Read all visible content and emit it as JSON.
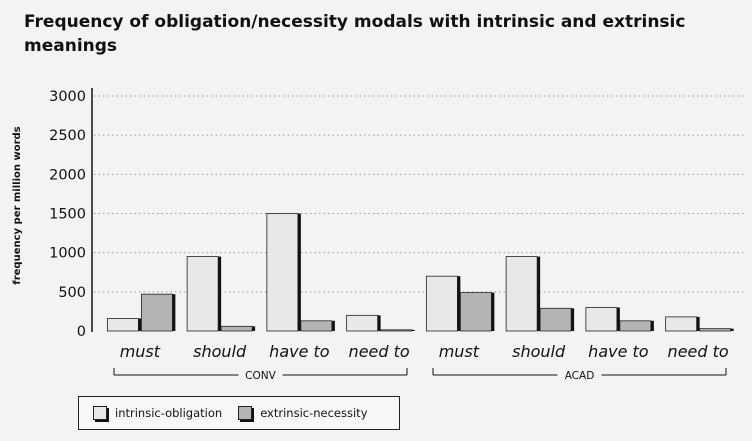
{
  "title": "Frequency of obligation/necessity modals with intrinsic and extrinsic meanings",
  "chart_data": {
    "type": "bar",
    "title": "Frequency of obligation/necessity modals with intrinsic and extrinsic meanings",
    "ylabel": "frequency per million words",
    "xlabel": "",
    "ylim": [
      0,
      3000
    ],
    "yticks": [
      0,
      500,
      1000,
      1500,
      2000,
      2500,
      3000
    ],
    "grid": true,
    "legend_position": "bottom-left",
    "categories": [
      "must",
      "should",
      "have to",
      "need to",
      "must",
      "should",
      "have to",
      "need to"
    ],
    "groups": [
      {
        "label": "CONV",
        "categories": [
          "must",
          "should",
          "have to",
          "need to"
        ]
      },
      {
        "label": "ACAD",
        "categories": [
          "must",
          "should",
          "have to",
          "need to"
        ]
      }
    ],
    "series": [
      {
        "name": "intrinsic-obligation",
        "color": "#e8e8e6",
        "values": [
          160,
          950,
          1500,
          200,
          700,
          950,
          300,
          180
        ]
      },
      {
        "name": "extrinsic-necessity",
        "color": "#b4b4b2",
        "values": [
          470,
          60,
          130,
          15,
          490,
          290,
          130,
          30
        ]
      }
    ]
  }
}
